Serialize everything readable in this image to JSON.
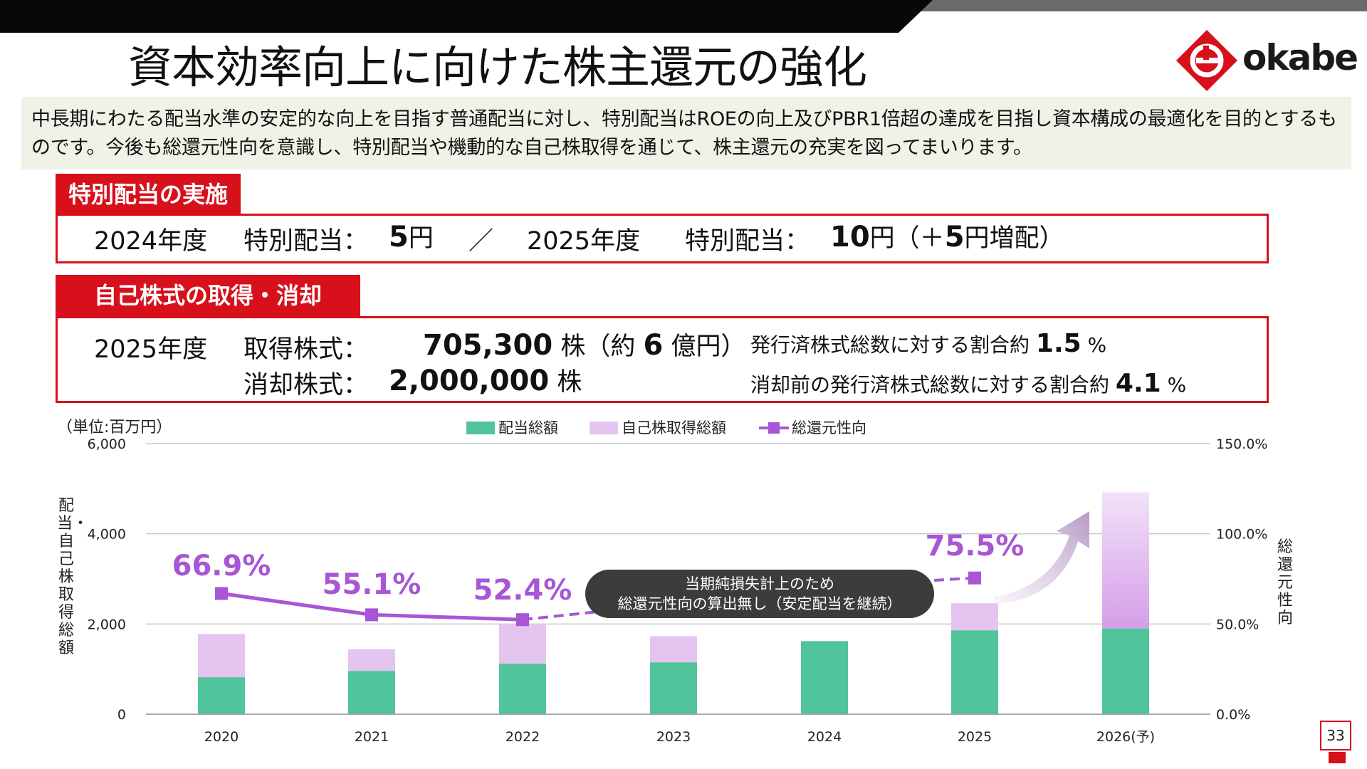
{
  "title": "資本効率向上に向けた株主還元の強化",
  "logo": {
    "text": "okabe"
  },
  "intro": "中長期にわたる配当水準の安定的な向上を目指す普通配当に対し、特別配当はROEの向上及びPBR1倍超の達成を目指し資本構成の最適化を目的とするものです。今後も総還元性向を意識し、特別配当や機動的な自己株取得を通じて、株主還元の充実を図ってまいります。",
  "special_dividend": {
    "label": "特別配当の実施",
    "y1": "2024年度",
    "item1": "特別配当：",
    "v1_num": "5",
    "v1_unit": "円",
    "sep": "／",
    "y2": "2025年度",
    "item2": "特別配当：",
    "v2_num": "10",
    "v2_unit": "円（＋",
    "v2_inc_num": "5",
    "v2_inc_unit": "円増配）"
  },
  "buyback": {
    "label": "自己株式の取得・消却",
    "year": "2025年度",
    "acq_label": "取得株式：",
    "acq_num": "705,300",
    "acq_unit": "株（約",
    "acq_yen_num": "6",
    "acq_yen_unit": "億円）",
    "ratio1_text": "発行済株式総数に対する割合約",
    "ratio1_num": "1.5",
    "ratio1_unit": "%",
    "cancel_label": "消却株式：",
    "cancel_num": "2,000,000",
    "cancel_unit": "株",
    "ratio2_text": "消却前の発行済株式総数に対する割合約",
    "ratio2_num": "4.1",
    "ratio2_unit": "%"
  },
  "chart_data": {
    "type": "bar",
    "unit_label": "（単位:百万円）",
    "ylabel": "配当・自己株取得総額",
    "y2label": "総還元性向",
    "categories": [
      "2020",
      "2021",
      "2022",
      "2023",
      "2024",
      "2025",
      "2026(予)"
    ],
    "ylim": [
      0,
      6000
    ],
    "yticks": [
      "0",
      "2,000",
      "4,000",
      "6,000"
    ],
    "y2lim": [
      0,
      150
    ],
    "y2ticks": [
      "0.0%",
      "50.0%",
      "100.0%",
      "150.0%"
    ],
    "grid": true,
    "legend_position": "top",
    "series": [
      {
        "name": "配当総額",
        "type": "bar",
        "stack": "total",
        "color": "#50c49a",
        "values": [
          820,
          960,
          1120,
          1150,
          1620,
          1860,
          1900
        ]
      },
      {
        "name": "自己株取得総額",
        "type": "bar",
        "stack": "total",
        "color": "#e3c5ef",
        "values": [
          960,
          480,
          880,
          580,
          0,
          600,
          3020
        ]
      },
      {
        "name": "総還元性向",
        "type": "line",
        "axis": "right",
        "color": "#a855d6",
        "values": [
          66.9,
          55.1,
          52.4,
          null,
          null,
          75.5,
          null
        ]
      }
    ],
    "data_labels": [
      "66.9%",
      "55.1%",
      "52.4%",
      "75.5%"
    ],
    "annotation": {
      "line1": "当期純損失計上のため",
      "line2": "総還元性向の算出無し（安定配当を継続）"
    }
  },
  "page_number": "33"
}
